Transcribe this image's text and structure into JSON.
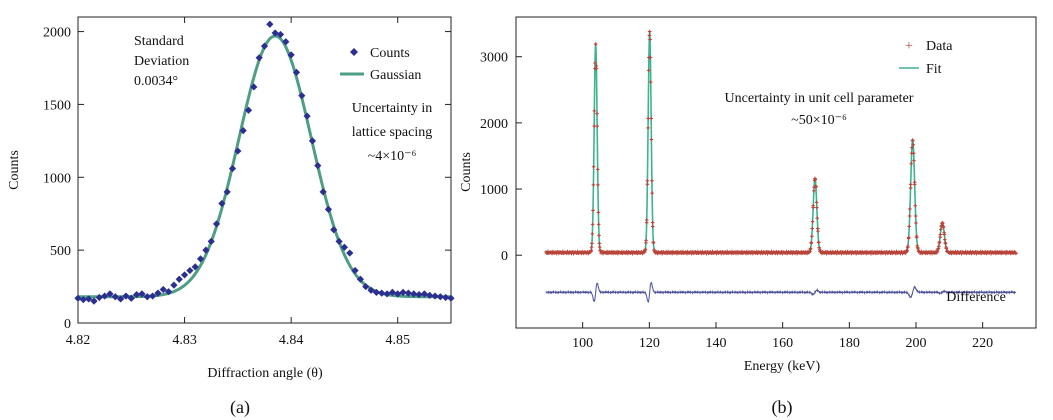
{
  "chart_data": [
    {
      "id": "a",
      "panel_label": "(a)",
      "type": "scatter",
      "xlabel": "Diffraction angle (θ)",
      "ylabel": "Counts",
      "xlim": [
        4.82,
        4.855
      ],
      "ylim": [
        0,
        2100
      ],
      "xticks": [
        "4.82",
        "4.83",
        "4.84",
        "4.85"
      ],
      "xtick_values": [
        4.82,
        4.83,
        4.84,
        4.85
      ],
      "yticks": [
        "0",
        "500",
        "1000",
        "1500",
        "2000"
      ],
      "ytick_values": [
        0,
        500,
        1000,
        1500,
        2000
      ],
      "legend": {
        "position": "top-right",
        "counts_label": "Counts",
        "fit_label": "Gaussian"
      },
      "annotation_sd": [
        "Standard",
        "Deviation",
        "0.0034°"
      ],
      "annotation_unc": [
        "Uncertainty in",
        "lattice spacing",
        "~4×10⁻⁶"
      ],
      "colors": {
        "points": "#2b2f8f",
        "fit": "#4e9e86"
      },
      "series": [
        {
          "name": "Counts",
          "kind": "points",
          "x": [
            4.82,
            4.8205,
            4.821,
            4.8215,
            4.822,
            4.8225,
            4.823,
            4.8235,
            4.824,
            4.8245,
            4.825,
            4.8255,
            4.826,
            4.8265,
            4.827,
            4.8275,
            4.828,
            4.8285,
            4.829,
            4.8295,
            4.83,
            4.8305,
            4.831,
            4.8315,
            4.832,
            4.8325,
            4.833,
            4.8335,
            4.834,
            4.8345,
            4.835,
            4.8355,
            4.836,
            4.8365,
            4.837,
            4.8375,
            4.838,
            4.8385,
            4.839,
            4.8395,
            4.84,
            4.8405,
            4.841,
            4.8415,
            4.842,
            4.8425,
            4.843,
            4.8435,
            4.844,
            4.8445,
            4.845,
            4.8455,
            4.846,
            4.8465,
            4.847,
            4.8475,
            4.848,
            4.8485,
            4.849,
            4.8495,
            4.85,
            4.8505,
            4.851,
            4.8515,
            4.852,
            4.8525,
            4.853,
            4.8535,
            4.854,
            4.8545,
            4.855
          ],
          "y": [
            170,
            160,
            165,
            150,
            175,
            185,
            200,
            180,
            165,
            185,
            170,
            195,
            200,
            180,
            185,
            205,
            230,
            215,
            260,
            300,
            330,
            360,
            385,
            440,
            500,
            560,
            680,
            820,
            900,
            1060,
            1180,
            1320,
            1460,
            1620,
            1820,
            1900,
            2050,
            1990,
            1980,
            1930,
            1840,
            1720,
            1560,
            1420,
            1250,
            1080,
            900,
            780,
            640,
            560,
            520,
            480,
            360,
            300,
            250,
            225,
            210,
            205,
            200,
            210,
            200,
            210,
            205,
            200,
            195,
            200,
            190,
            185,
            180,
            175,
            170
          ]
        },
        {
          "name": "Gaussian",
          "kind": "fit",
          "amplitude": 1790,
          "center": 4.8385,
          "sigma": 0.0034,
          "baseline": 180
        }
      ]
    },
    {
      "id": "b",
      "panel_label": "(b)",
      "type": "line",
      "xlabel": "Energy (keV)",
      "ylabel": "Counts",
      "xlim": [
        80,
        236
      ],
      "ylim": [
        -1100,
        3600
      ],
      "xticks": [
        "100",
        "120",
        "140",
        "160",
        "180",
        "200",
        "220"
      ],
      "xtick_values": [
        100,
        120,
        140,
        160,
        180,
        200,
        220
      ],
      "yticks": [
        "0",
        "1000",
        "2000",
        "3000"
      ],
      "ytick_values": [
        0,
        1000,
        2000,
        3000
      ],
      "legend": {
        "position": "top-right",
        "data_label": "Data",
        "fit_label": "Fit"
      },
      "annotation_unc": [
        "Uncertainty in unit cell parameter",
        "~50×10⁻⁶"
      ],
      "difference_label": "Difference",
      "colors": {
        "data": "#b8443a",
        "fit": "#3fb28f",
        "difference": "#4a4d99"
      },
      "energy_range": [
        89,
        230
      ],
      "background": 40,
      "difference_offset": -560,
      "peaks": [
        {
          "energy": 103.9,
          "height": 3150,
          "width": 0.45
        },
        {
          "energy": 120.1,
          "height": 3340,
          "width": 0.45
        },
        {
          "energy": 169.7,
          "height": 1120,
          "width": 0.55
        },
        {
          "energy": 199.0,
          "height": 1700,
          "width": 0.6
        },
        {
          "energy": 207.9,
          "height": 450,
          "width": 0.6
        }
      ],
      "series": [
        {
          "name": "Data",
          "kind": "points"
        },
        {
          "name": "Fit",
          "kind": "fit"
        },
        {
          "name": "Difference",
          "kind": "residual"
        }
      ]
    }
  ]
}
